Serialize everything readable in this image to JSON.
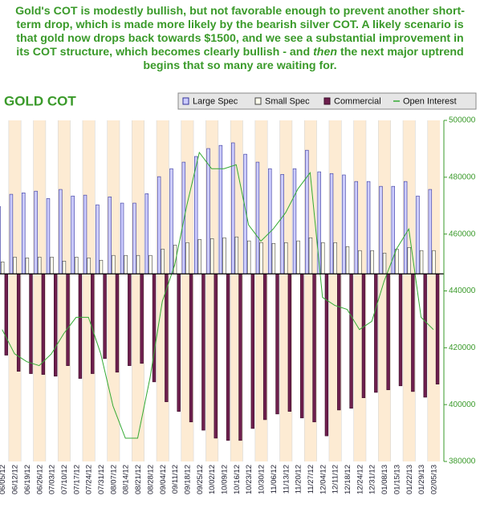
{
  "commentary": [
    "Gold's COT is modestly bullish, but not favorable enough to prevent another short-term drop, which is made more likely by the bearish silver COT. A likely scenario is that gold now drops back towards $1500, and we see a substantial improvement in its COT structure, which becomes clearly bullish - and",
    "then",
    "the next major uptrend begins that so many are waiting for."
  ],
  "chart_data": {
    "type": "bar",
    "title": "GOLD COT",
    "categories": [
      "06/05/12",
      "06/12/12",
      "06/19/12",
      "06/26/12",
      "07/03/12",
      "07/10/12",
      "07/17/12",
      "07/24/12",
      "07/31/12",
      "08/07/12",
      "08/14/12",
      "08/21/12",
      "08/28/12",
      "09/04/12",
      "09/11/12",
      "09/18/12",
      "09/25/12",
      "10/02/12",
      "10/09/12",
      "10/16/12",
      "10/23/12",
      "10/30/12",
      "11/06/12",
      "11/13/12",
      "11/20/12",
      "11/27/12",
      "12/04/12",
      "12/11/12",
      "12/18/12",
      "12/24/12",
      "12/31/12",
      "01/08/13",
      "01/15/13",
      "01/22/13",
      "01/29/13",
      "02/05/13"
    ],
    "series": [
      {
        "name": "Large Spec",
        "type": "bar",
        "color": "#ccccff",
        "values": [
          469700,
          474000,
          474500,
          475100,
          472500,
          475700,
          473400,
          473700,
          470300,
          473100,
          470900,
          470900,
          474200,
          480200,
          483000,
          485300,
          487300,
          490100,
          491200,
          492100,
          488100,
          485300,
          483000,
          481000,
          483000,
          489500,
          481900,
          481300,
          480800,
          478500,
          478500,
          476800,
          476800,
          478500,
          473400,
          475700
        ]
      },
      {
        "name": "Small Spec",
        "type": "bar",
        "color": "#ffffee",
        "values": [
          450200,
          451900,
          451600,
          451900,
          451900,
          450500,
          451900,
          451600,
          450800,
          452500,
          452500,
          452500,
          452500,
          454700,
          456100,
          457000,
          458100,
          458400,
          458700,
          459000,
          457600,
          457000,
          456700,
          457000,
          457600,
          458700,
          457000,
          457000,
          455600,
          454200,
          454200,
          453300,
          454700,
          455300,
          454200,
          454200
        ]
      },
      {
        "name": "Commercial",
        "type": "bar",
        "color": "#6e1f4e",
        "values": [
          417400,
          411700,
          410900,
          410600,
          410000,
          413700,
          409200,
          410900,
          416200,
          411400,
          413700,
          414500,
          408000,
          401000,
          397600,
          393900,
          391000,
          388200,
          387400,
          387400,
          391600,
          394700,
          396700,
          397600,
          395300,
          393900,
          389000,
          398100,
          398700,
          402400,
          404300,
          405200,
          406600,
          404600,
          402600,
          407200
        ]
      },
      {
        "name": "Open Interest",
        "type": "line",
        "color": "#33aa33",
        "values": [
          426400,
          417900,
          415100,
          413700,
          417900,
          425000,
          430700,
          430700,
          417900,
          399500,
          388200,
          388200,
          409400,
          436300,
          449100,
          470300,
          488700,
          483000,
          483000,
          484400,
          463200,
          457500,
          461800,
          467500,
          475900,
          481600,
          437700,
          434900,
          433500,
          426400,
          429300,
          443400,
          454700,
          461800,
          430700,
          426400
        ]
      }
    ],
    "baseline": 446000,
    "ylim": [
      380000,
      500000
    ],
    "yticks": [
      380000,
      400000,
      420000,
      440000,
      460000,
      480000,
      500000
    ]
  }
}
